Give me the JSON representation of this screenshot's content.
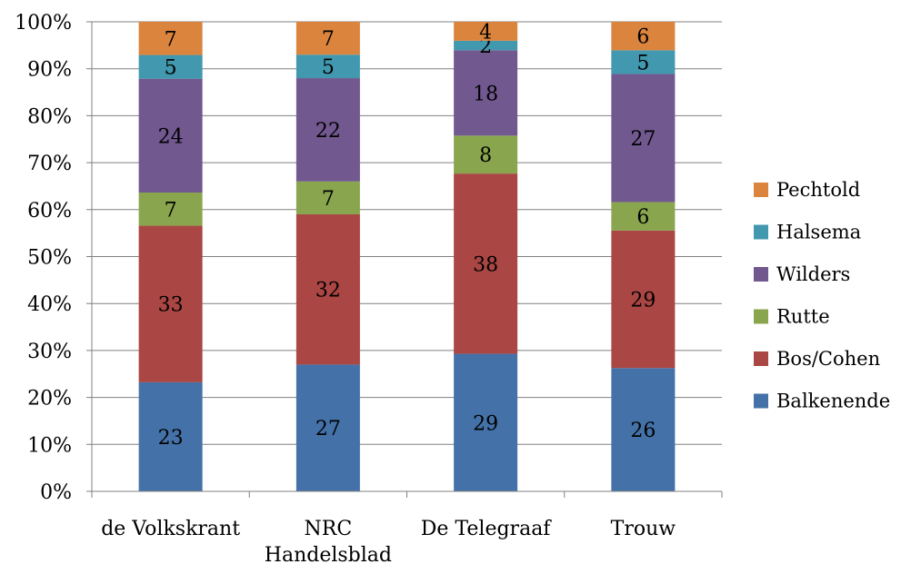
{
  "chart_data": {
    "type": "bar",
    "stacked": "percent",
    "categories": [
      "de Volkskrant",
      "NRC Handelsblad",
      "De Telegraaf",
      "Trouw"
    ],
    "category_display": [
      [
        "de Volkskrant"
      ],
      [
        "NRC",
        "Handelsblad"
      ],
      [
        "De Telegraaf"
      ],
      [
        "Trouw"
      ]
    ],
    "series": [
      {
        "name": "Balkenende",
        "color": "#4472a8",
        "values": [
          23,
          27,
          29,
          26
        ]
      },
      {
        "name": "Bos/Cohen",
        "color": "#aa4643",
        "values": [
          33,
          32,
          38,
          29
        ]
      },
      {
        "name": "Rutte",
        "color": "#89a54e",
        "values": [
          7,
          7,
          8,
          6
        ]
      },
      {
        "name": "Wilders",
        "color": "#71588f",
        "values": [
          24,
          22,
          18,
          27
        ]
      },
      {
        "name": "Halsema",
        "color": "#4198af",
        "values": [
          5,
          5,
          2,
          5
        ]
      },
      {
        "name": "Pechtold",
        "color": "#db843d",
        "values": [
          7,
          7,
          4,
          6
        ]
      }
    ],
    "yticks": [
      "0%",
      "10%",
      "20%",
      "30%",
      "40%",
      "50%",
      "60%",
      "70%",
      "80%",
      "90%",
      "100%"
    ],
    "ylim": [
      0,
      100
    ],
    "grid": true,
    "legend": "right"
  }
}
